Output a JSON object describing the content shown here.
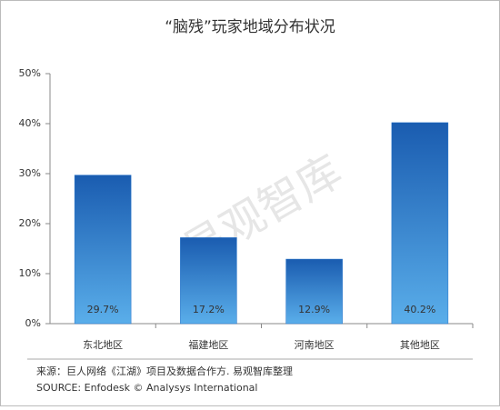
{
  "chart_data": {
    "type": "bar",
    "title": "“脑残”玩家地域分布状况",
    "categories": [
      "东北地区",
      "福建地区",
      "河南地区",
      "其他地区"
    ],
    "values": [
      29.7,
      17.2,
      12.9,
      40.2
    ],
    "value_labels": [
      "29.7%",
      "17.2%",
      "12.9%",
      "40.2%"
    ],
    "color": "#1f6fc8",
    "ylim": [
      0,
      50
    ],
    "yticks": [
      {
        "value": 0,
        "label": "0%"
      },
      {
        "value": 10,
        "label": "10%"
      },
      {
        "value": 20,
        "label": "20%"
      },
      {
        "value": 30,
        "label": "30%"
      },
      {
        "value": 40,
        "label": "40%"
      },
      {
        "value": 50,
        "label": "50%"
      }
    ],
    "watermark": "易观智库",
    "source": "来源：巨人网络《江湖》项目及数据合作方. 易观智库整理",
    "source_en": "SOURCE: Enfodesk © Analysys International"
  }
}
